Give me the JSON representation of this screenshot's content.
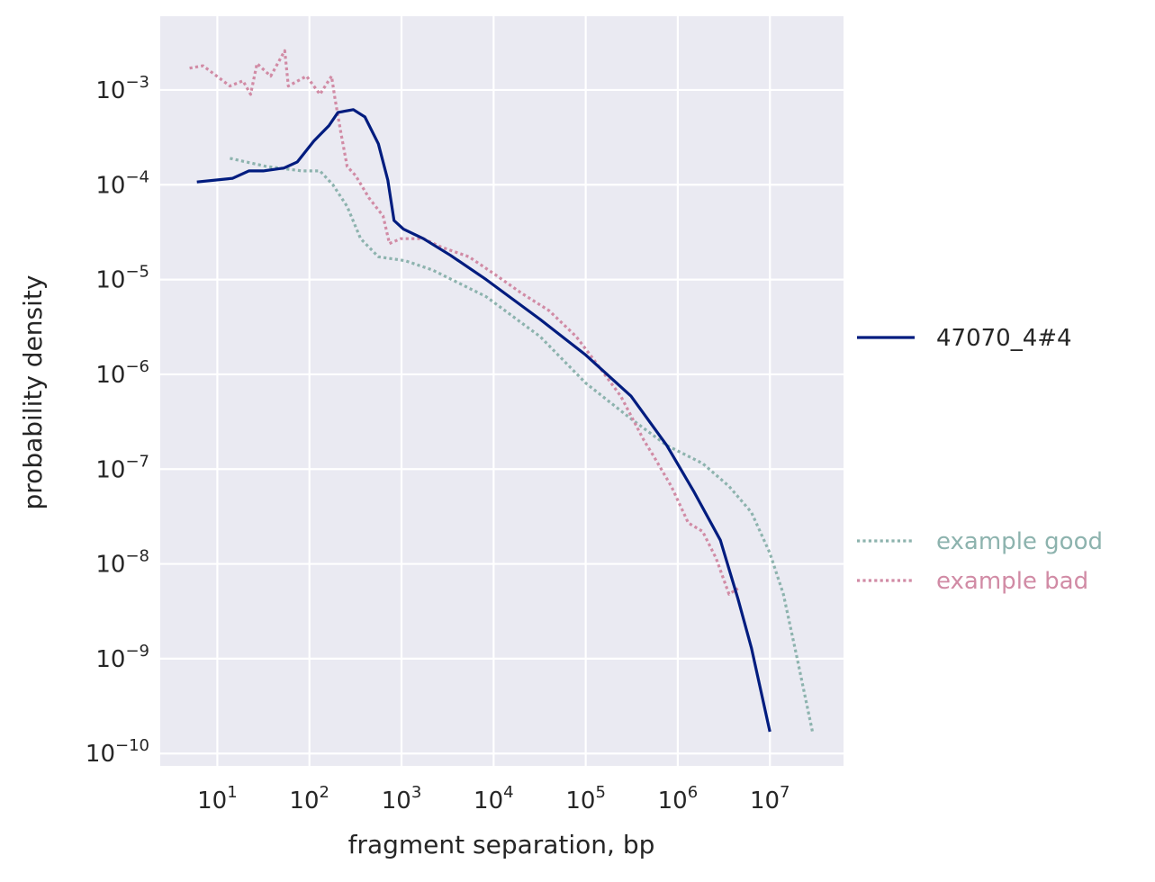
{
  "chart_data": {
    "type": "line",
    "title": "",
    "xlabel": "fragment separation, bp",
    "ylabel": "probability density",
    "xscale": "log",
    "yscale": "log",
    "xlim": [
      2.4,
      63000000
    ],
    "ylim": [
      7.4e-11,
      0.006
    ],
    "grid": true,
    "background": "#EAEAF2",
    "legend_placement": "right, outside",
    "x_ticks": [
      {
        "base": "10",
        "exp": "1",
        "value": 10
      },
      {
        "base": "10",
        "exp": "2",
        "value": 100
      },
      {
        "base": "10",
        "exp": "3",
        "value": 1000
      },
      {
        "base": "10",
        "exp": "4",
        "value": 10000
      },
      {
        "base": "10",
        "exp": "5",
        "value": 100000
      },
      {
        "base": "10",
        "exp": "6",
        "value": 1000000
      },
      {
        "base": "10",
        "exp": "7",
        "value": 10000000
      }
    ],
    "y_ticks": [
      {
        "base": "10",
        "exp": "−3",
        "value": 0.001
      },
      {
        "base": "10",
        "exp": "−4",
        "value": 0.0001
      },
      {
        "base": "10",
        "exp": "−5",
        "value": 1e-05
      },
      {
        "base": "10",
        "exp": "−6",
        "value": 1e-06
      },
      {
        "base": "10",
        "exp": "−7",
        "value": 1e-07
      },
      {
        "base": "10",
        "exp": "−8",
        "value": 1e-08
      },
      {
        "base": "10",
        "exp": "−9",
        "value": 1e-09
      },
      {
        "base": "10",
        "exp": "−10",
        "value": 1e-10
      }
    ],
    "series": [
      {
        "name": "47070_4#4",
        "color": "#001C7F",
        "style": "solid",
        "points": [
          [
            6,
            0.000107
          ],
          [
            14.7,
            0.000117
          ],
          [
            22,
            0.00014
          ],
          [
            31.5,
            0.00014
          ],
          [
            53,
            0.00015
          ],
          [
            74,
            0.000174
          ],
          [
            112,
            0.00029
          ],
          [
            163,
            0.00042
          ],
          [
            204,
            0.00058
          ],
          [
            300,
            0.00062
          ],
          [
            400,
            0.00052
          ],
          [
            560,
            0.00027
          ],
          [
            710,
            0.000112
          ],
          [
            830,
            4.2e-05
          ],
          [
            1050,
            3.4e-05
          ],
          [
            1730,
            2.7e-05
          ],
          [
            3400,
            1.8e-05
          ],
          [
            8300,
            1e-05
          ],
          [
            32000,
            3.8e-06
          ],
          [
            100000,
            1.6e-06
          ],
          [
            310000,
            5.9e-07
          ],
          [
            760000,
            1.78e-07
          ],
          [
            1480000,
            5.9e-08
          ],
          [
            2900000,
            1.78e-08
          ],
          [
            4500000,
            4.3e-09
          ],
          [
            6300000,
            1.3e-09
          ],
          [
            10000000,
            1.7e-10
          ]
        ]
      },
      {
        "name": "example good",
        "color": "#8DB3AE",
        "style": "dotted",
        "points": [
          [
            13.7,
            0.00019
          ],
          [
            34,
            0.000156
          ],
          [
            83,
            0.00014
          ],
          [
            130,
            0.00014
          ],
          [
            180,
            0.0001
          ],
          [
            257,
            5.9e-05
          ],
          [
            360,
            2.7e-05
          ],
          [
            560,
            1.74e-05
          ],
          [
            1100,
            1.58e-05
          ],
          [
            2170,
            1.26e-05
          ],
          [
            8300,
            6.6e-06
          ],
          [
            32000,
            2.5e-06
          ],
          [
            100000,
            8.1e-07
          ],
          [
            310000,
            3.4e-07
          ],
          [
            760000,
            1.78e-07
          ],
          [
            1860000,
            1.15e-07
          ],
          [
            3600000,
            6.6e-08
          ],
          [
            6300000,
            3.5e-08
          ],
          [
            10000000,
            1.3e-08
          ],
          [
            14000000,
            4.8e-09
          ],
          [
            19600000,
            1.05e-09
          ],
          [
            29000000,
            1.7e-10
          ]
        ]
      },
      {
        "name": "example bad",
        "color": "#D18BA5",
        "style": "dotted",
        "points": [
          [
            5,
            0.0017
          ],
          [
            7,
            0.0018
          ],
          [
            13.7,
            0.0011
          ],
          [
            19,
            0.00125
          ],
          [
            23,
            0.0009
          ],
          [
            27,
            0.0019
          ],
          [
            38,
            0.0014
          ],
          [
            54,
            0.0026
          ],
          [
            59,
            0.0011
          ],
          [
            93,
            0.0014
          ],
          [
            130,
            0.0009
          ],
          [
            174,
            0.0014
          ],
          [
            190,
            0.0008
          ],
          [
            218,
            0.00037
          ],
          [
            257,
            0.000156
          ],
          [
            317,
            0.000125
          ],
          [
            446,
            7.2e-05
          ],
          [
            630,
            4.7e-05
          ],
          [
            740,
            2.4e-05
          ],
          [
            980,
            2.7e-05
          ],
          [
            1730,
            2.7e-05
          ],
          [
            2700,
            2.2e-05
          ],
          [
            5400,
            1.74e-05
          ],
          [
            10500,
            1.12e-05
          ],
          [
            20000,
            7.2e-06
          ],
          [
            40000,
            4.7e-06
          ],
          [
            79000,
            2.5e-06
          ],
          [
            124000,
            1.4e-06
          ],
          [
            240000,
            5.9e-07
          ],
          [
            430000,
            2e-07
          ],
          [
            540000,
            1.4e-07
          ],
          [
            850000,
            6.6e-08
          ],
          [
            1300000,
            2.7e-08
          ],
          [
            1860000,
            2.2e-08
          ],
          [
            2600000,
            1.15e-08
          ],
          [
            3600000,
            4.8e-09
          ],
          [
            4500000,
            5.5e-09
          ]
        ]
      }
    ]
  }
}
